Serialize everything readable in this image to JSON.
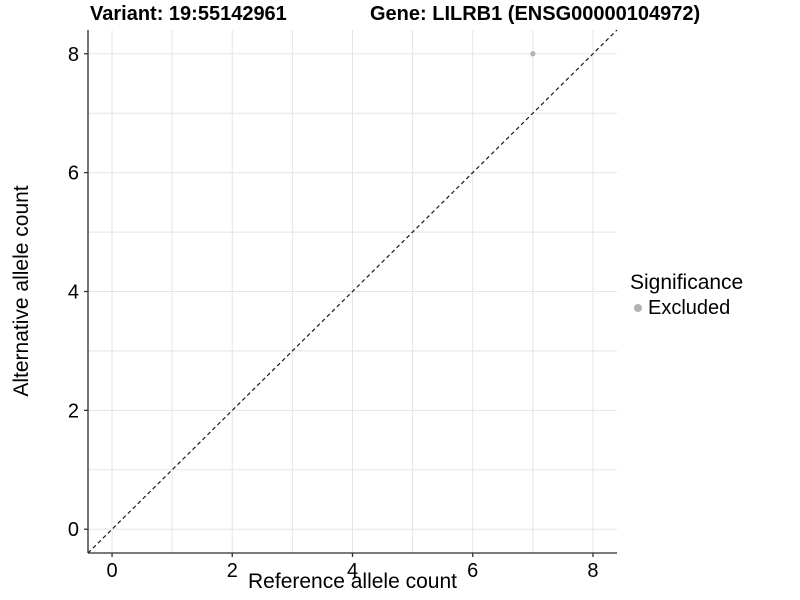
{
  "titles": {
    "variant": "Variant: 19:55142961",
    "gene": "Gene: LILRB1 (ENSG00000104972)"
  },
  "chart_data": {
    "type": "scatter",
    "xlabel": "Reference allele count",
    "ylabel": "Alternative allele count",
    "xlim": [
      -0.4,
      8.4
    ],
    "ylim": [
      -0.4,
      8.4
    ],
    "x_ticks": [
      0,
      2,
      4,
      6,
      8
    ],
    "y_ticks": [
      0,
      2,
      4,
      6,
      8
    ],
    "gridlines": {
      "start": 0,
      "end": 8,
      "step": 1
    },
    "points": [
      {
        "x": 7,
        "y": 8,
        "series": "Excluded"
      }
    ],
    "reference_line": {
      "type": "identity",
      "style": "dashed",
      "x1": -0.4,
      "y1": -0.4,
      "x2": 8.4,
      "y2": 8.4
    },
    "legend": {
      "position": "right",
      "title": "Significance",
      "items": [
        {
          "label": "Excluded",
          "color": "#b3b3b3"
        }
      ]
    },
    "colors": {
      "background": "#ffffff",
      "grid": "#e5e5e5",
      "axis_line": "#2b2b2b",
      "tick": "#333333",
      "text": "#000000",
      "point": "#b3b3b3",
      "reference_line": "#1a1a1a"
    }
  }
}
